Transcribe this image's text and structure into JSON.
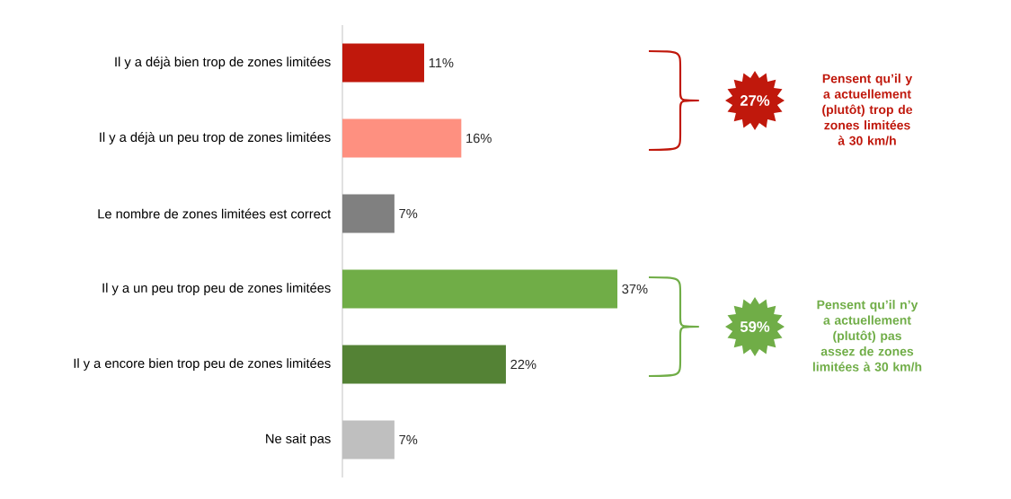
{
  "chart_data": {
    "type": "bar",
    "orientation": "horizontal",
    "categories": [
      "Il y a déjà bien trop de zones limitées",
      "Il y a déjà un peu trop de zones limitées",
      "Le nombre de zones limitées est correct",
      "Il y a un peu trop peu de zones limitées",
      "Il y a encore bien trop peu de zones limitées",
      "Ne sait pas"
    ],
    "values": [
      11,
      16,
      7,
      37,
      22,
      7
    ],
    "value_labels": [
      "11%",
      "16%",
      "7%",
      "37%",
      "22%",
      "7%"
    ],
    "colors": [
      "#c0180c",
      "#fe9080",
      "#808080",
      "#70ad47",
      "#548235",
      "#bfbfbf"
    ],
    "annotations": [
      "27%",
      "Pensent qu’il y a actuellement (plutôt) trop de zones limitées à 30 km/h",
      "59%",
      "Pensent qu’il n’y a actuellement (plutôt) pas assez de zones limitées à 30 km/h"
    ]
  }
}
